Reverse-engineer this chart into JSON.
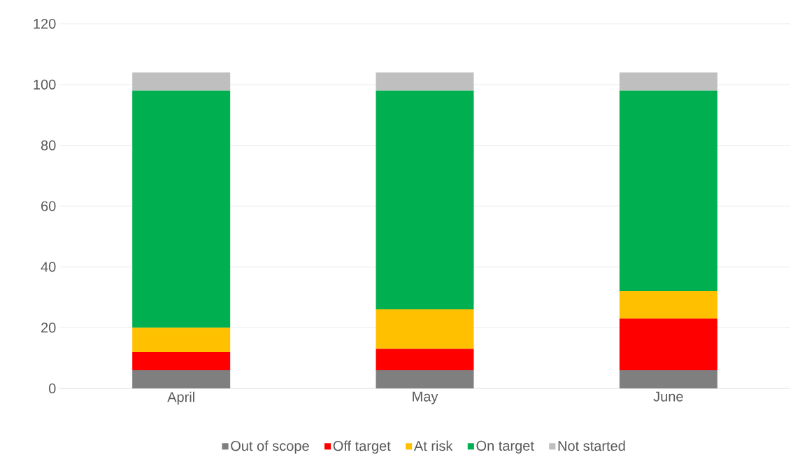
{
  "chart_data": {
    "type": "bar",
    "stacked": true,
    "categories": [
      "April",
      "May",
      "June"
    ],
    "series": [
      {
        "name": "Out of scope",
        "color": "#7f7f7f",
        "values": [
          6,
          6,
          6
        ]
      },
      {
        "name": "Off target",
        "color": "#ff0000",
        "values": [
          6,
          7,
          17
        ]
      },
      {
        "name": "At risk",
        "color": "#ffc000",
        "values": [
          8,
          13,
          9
        ]
      },
      {
        "name": "On target",
        "color": "#00b050",
        "values": [
          78,
          72,
          66
        ]
      },
      {
        "name": "Not started",
        "color": "#bfbfbf",
        "values": [
          6,
          6,
          6
        ]
      }
    ],
    "ylim": [
      0,
      120
    ],
    "yticks": [
      0,
      20,
      40,
      60,
      80,
      100,
      120
    ],
    "grid": "y",
    "legend": "bottom"
  }
}
